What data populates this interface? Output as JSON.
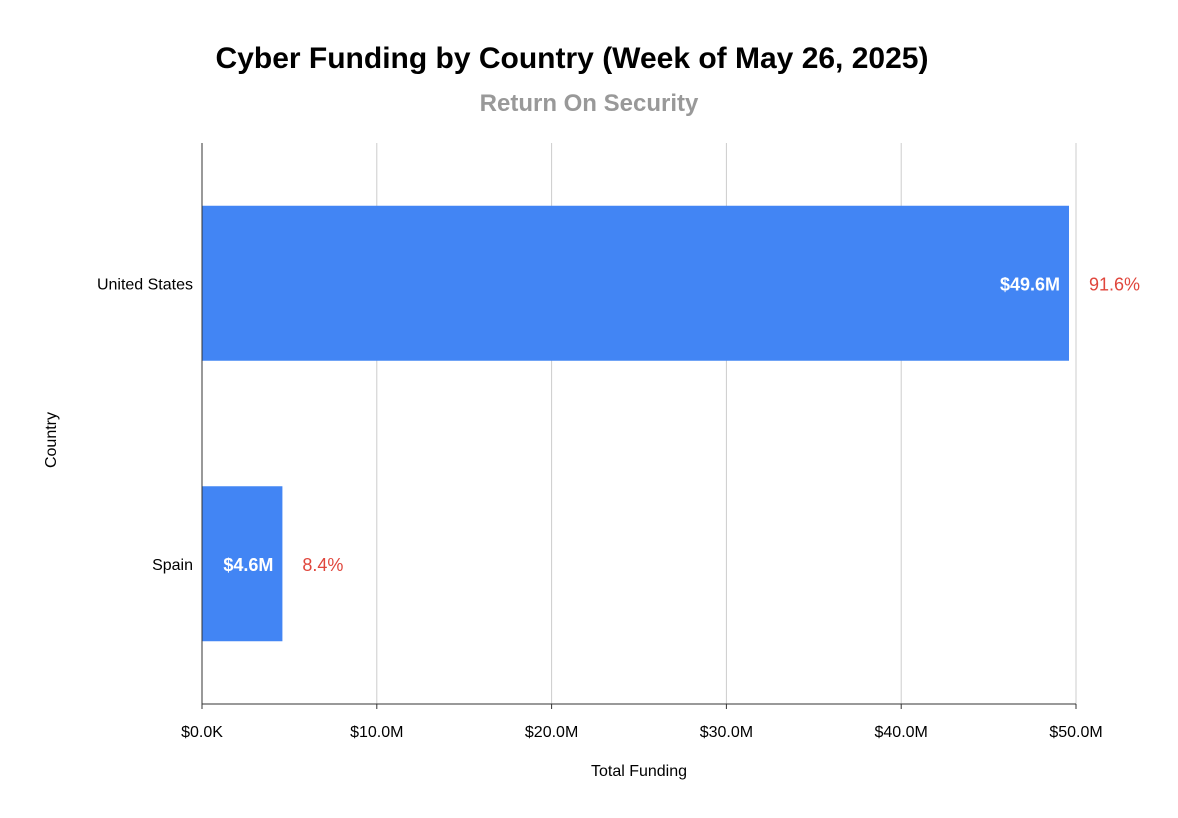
{
  "chart_data": {
    "type": "bar",
    "orientation": "horizontal",
    "title": "Cyber Funding by Country (Week of May 26, 2025)",
    "subtitle": "Return On Security",
    "xlabel": "Total Funding",
    "ylabel": "Country",
    "categories": [
      "United States",
      "Spain"
    ],
    "values": [
      49.6,
      4.6
    ],
    "value_labels": [
      "$49.6M",
      "$4.6M"
    ],
    "percent_labels": [
      "91.6%",
      "8.4%"
    ],
    "xlim": [
      0,
      50
    ],
    "x_ticks": [
      0,
      10,
      20,
      30,
      40,
      50
    ],
    "x_tick_labels": [
      "$0.0K",
      "$10.0M",
      "$20.0M",
      "$30.0M",
      "$40.0M",
      "$50.0M"
    ],
    "grid": true,
    "legend": "none",
    "colors": {
      "bar": "#4285f4",
      "percent_label": "#e0463c",
      "grid": "#cccccc",
      "axis": "#333333"
    }
  }
}
